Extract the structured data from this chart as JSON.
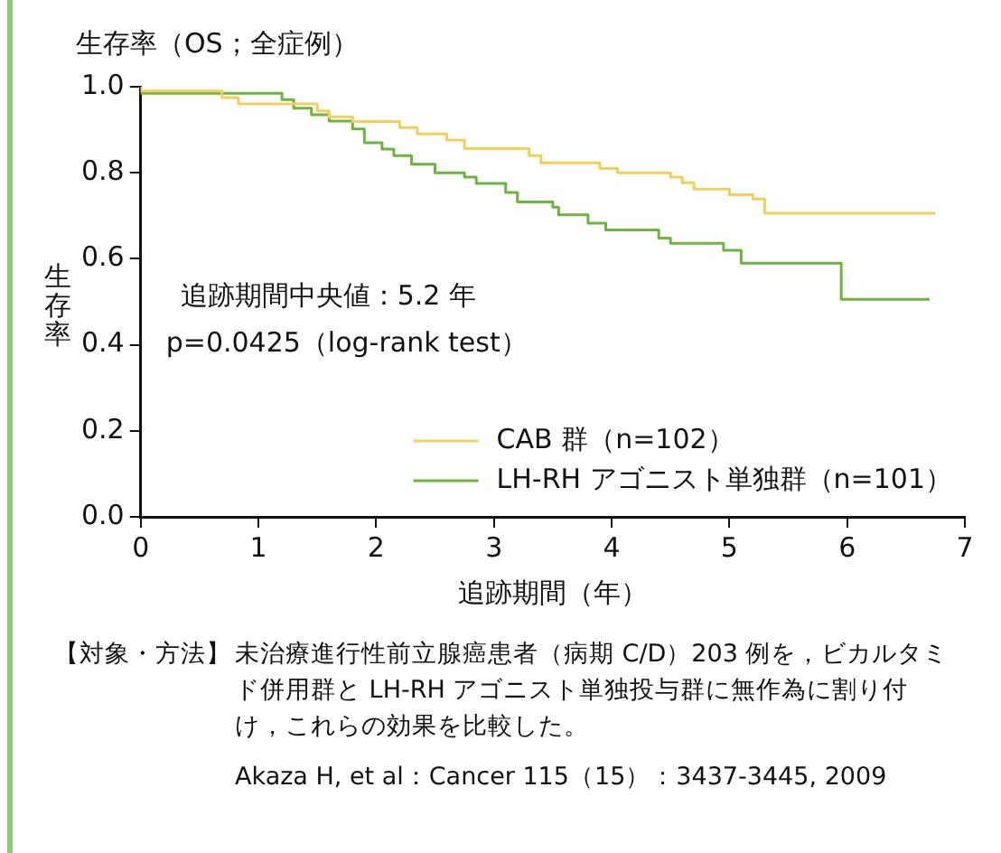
{
  "chart_data": {
    "type": "step",
    "title": "生存率（OS；全症例）",
    "ylabel": "生存率",
    "xlabel": "追跡期間（年）",
    "xlim": [
      0,
      7
    ],
    "xticks": [
      0,
      1,
      2,
      3,
      4,
      5,
      6,
      7
    ],
    "ylim": [
      0,
      1
    ],
    "yticks": [
      {
        "value": 0,
        "label": "0.0"
      },
      {
        "value": 0.2,
        "label": "0.2"
      },
      {
        "value": 0.4,
        "label": "0.4"
      },
      {
        "value": 0.6,
        "label": "0.6"
      },
      {
        "value": 0.8,
        "label": "0.8"
      },
      {
        "value": 1,
        "label": "1.0"
      }
    ],
    "marker": "none",
    "legend": "bottom right",
    "series": [
      {
        "name": "CAB 群（n=102）",
        "color": "#f2cf5a",
        "x": [
          0,
          0.69,
          0.83,
          1.5,
          1.6,
          1.8,
          2.2,
          2.35,
          2.6,
          2.75,
          3.3,
          3.4,
          3.9,
          4.05,
          4.5,
          4.6,
          4.7,
          5.0,
          5.2,
          5.3,
          6.05,
          6.75
        ],
        "values": [
          1,
          0.99,
          0.975,
          0.96,
          0.944,
          0.93,
          0.919,
          0.905,
          0.89,
          0.876,
          0.856,
          0.84,
          0.823,
          0.81,
          0.8,
          0.79,
          0.777,
          0.762,
          0.749,
          0.739,
          0.706,
          0.706
        ]
      },
      {
        "name": "LH-RH アゴニスト単独群（n=101）",
        "color": "#6cb33f",
        "x": [
          0,
          1.2,
          1.3,
          1.45,
          1.6,
          1.8,
          1.9,
          2.05,
          2.15,
          2.3,
          2.5,
          2.75,
          2.85,
          3.1,
          3.2,
          3.5,
          3.55,
          3.8,
          3.95,
          4.4,
          4.5,
          4.95,
          5.1,
          5.95,
          6.35,
          6.7
        ],
        "values": [
          1,
          0.985,
          0.97,
          0.95,
          0.935,
          0.92,
          0.902,
          0.87,
          0.855,
          0.84,
          0.82,
          0.8,
          0.79,
          0.775,
          0.754,
          0.732,
          0.72,
          0.702,
          0.683,
          0.667,
          0.648,
          0.636,
          0.62,
          0.59,
          0.506,
          0.506
        ]
      }
    ],
    "annotations": [
      "追跡期間中央値：5.2 年",
      "p=0.0425（log-rank test）",
      "【対象・方法】",
      "未治療進行性前立腺癌患者（病期 C/D）203 例を，ビカルタミド併用群と LH-RH アゴニスト単独投与群に無作為に割り付け，これらの効果を比較した。",
      "Akaza H, et al：Cancer 115（15）：3437-3445, 2009"
    ]
  }
}
